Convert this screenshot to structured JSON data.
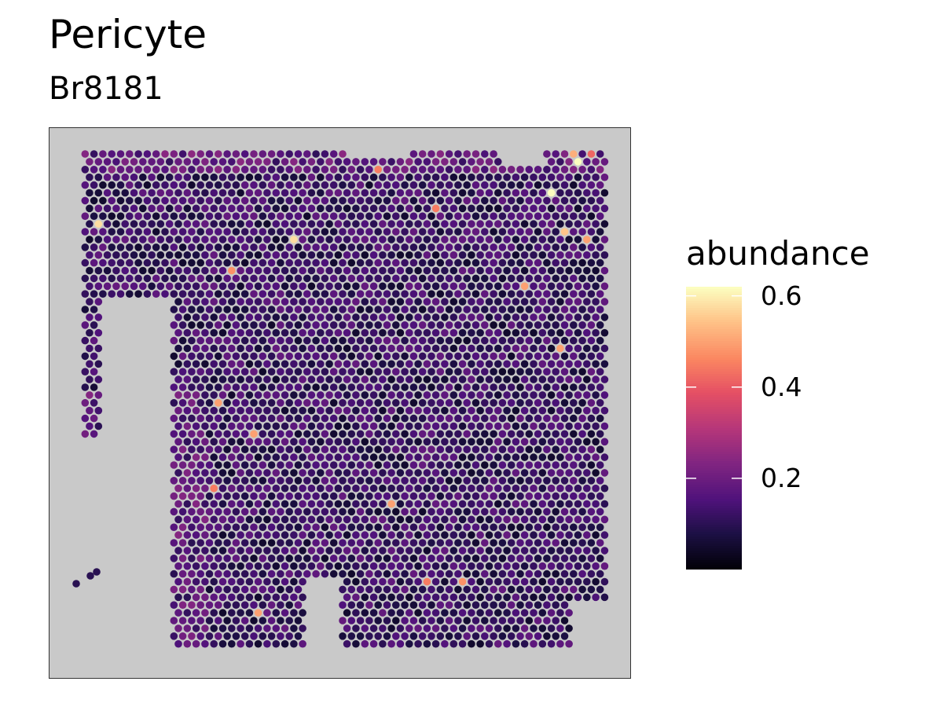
{
  "chart_data": {
    "type": "scatter",
    "title": "Pericyte",
    "subtitle": "Br8181",
    "xlabel": "",
    "ylabel": "",
    "legend": {
      "title": "abundance",
      "position": "right",
      "ticks": [
        0.2,
        0.4,
        0.6
      ],
      "tick_labels": [
        "0.2",
        "0.4",
        "0.6"
      ],
      "range": [
        0.0,
        0.62
      ]
    },
    "colormap": "magma",
    "panel_background": "#c9c9c9",
    "grid": false,
    "spot_grid": {
      "cols": 62,
      "rows": 64
    },
    "hotspots": [
      {
        "col": 56,
        "row": 0,
        "value": 0.52
      },
      {
        "col": 56,
        "row": 1,
        "value": 0.62
      },
      {
        "col": 58,
        "row": 0,
        "value": 0.42
      },
      {
        "col": 53,
        "row": 5,
        "value": 0.62
      },
      {
        "col": 2,
        "row": 9,
        "value": 0.58
      },
      {
        "col": 55,
        "row": 10,
        "value": 0.55
      },
      {
        "col": 24,
        "row": 11,
        "value": 0.58
      },
      {
        "col": 57,
        "row": 11,
        "value": 0.5
      },
      {
        "col": 17,
        "row": 15,
        "value": 0.48
      },
      {
        "col": 50,
        "row": 17,
        "value": 0.5
      },
      {
        "col": 54,
        "row": 25,
        "value": 0.5
      },
      {
        "col": 34,
        "row": 2,
        "value": 0.45
      },
      {
        "col": 40,
        "row": 7,
        "value": 0.45
      },
      {
        "col": 16,
        "row": 32,
        "value": 0.5
      },
      {
        "col": 20,
        "row": 36,
        "value": 0.5
      },
      {
        "col": 35,
        "row": 45,
        "value": 0.5
      },
      {
        "col": 15,
        "row": 43,
        "value": 0.45
      },
      {
        "col": 39,
        "row": 55,
        "value": 0.45
      },
      {
        "col": 43,
        "row": 55,
        "value": 0.48
      },
      {
        "col": 20,
        "row": 59,
        "value": 0.5
      }
    ]
  }
}
